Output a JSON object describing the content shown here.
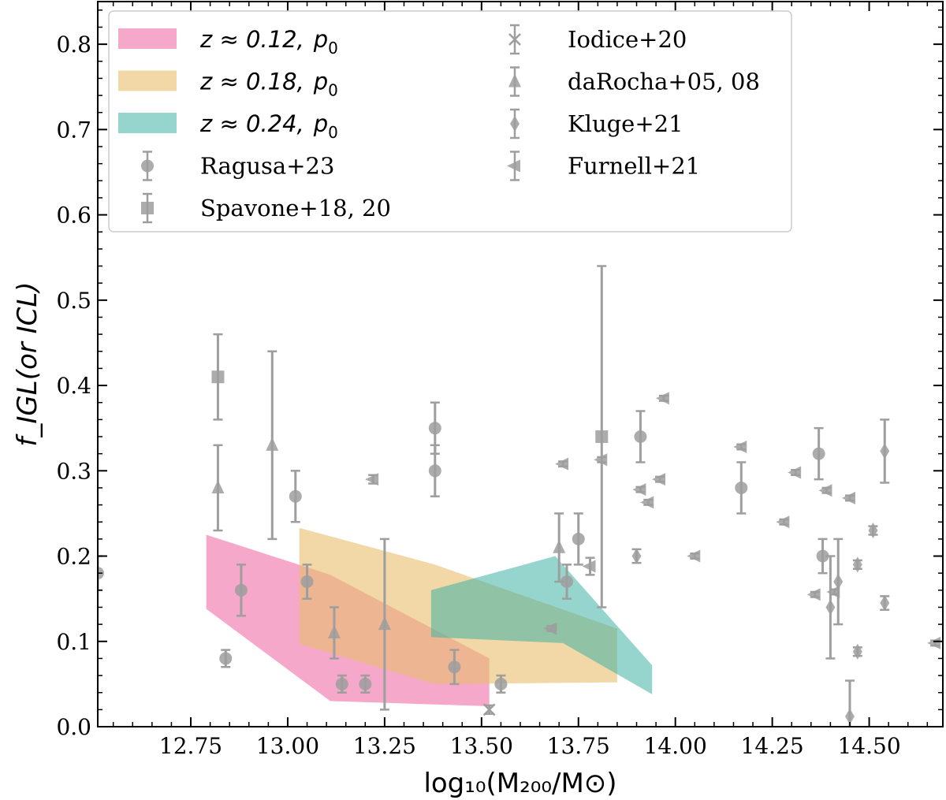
{
  "chart_data": {
    "type": "scatter",
    "xlabel": "log₁₀(M₂₀₀/M⊙)",
    "ylabel": "f_IGL(or ICL)",
    "xlim": [
      12.51,
      14.69
    ],
    "ylim": [
      0.0,
      0.85
    ],
    "x_ticks": [
      "12.75",
      "13.00",
      "13.25",
      "13.50",
      "13.75",
      "14.00",
      "14.25",
      "14.50"
    ],
    "y_ticks": [
      "0.0",
      "0.1",
      "0.2",
      "0.3",
      "0.4",
      "0.5",
      "0.6",
      "0.7",
      "0.8"
    ],
    "bands": [
      {
        "name": "z≈0.12, p0",
        "z": "z ≈ 0.12,",
        "p": "p",
        "p_sub": "0",
        "color": "#f06ea6",
        "opacity": 0.6,
        "upper": [
          [
            12.79,
            0.225
          ],
          [
            13.11,
            0.178
          ],
          [
            13.52,
            0.08
          ]
        ],
        "lower": [
          [
            12.79,
            0.138
          ],
          [
            13.11,
            0.03
          ],
          [
            13.52,
            0.024
          ]
        ]
      },
      {
        "name": "z≈0.18, p0",
        "z": "z ≈ 0.18,",
        "p": "p",
        "p_sub": "0",
        "color": "#e7be6a",
        "opacity": 0.6,
        "upper": [
          [
            13.03,
            0.233
          ],
          [
            13.38,
            0.19
          ],
          [
            13.85,
            0.115
          ]
        ],
        "lower": [
          [
            13.03,
            0.097
          ],
          [
            13.38,
            0.05
          ],
          [
            13.85,
            0.052
          ]
        ]
      },
      {
        "name": "z≈0.24, p0",
        "z": "z ≈ 0.24,",
        "p": "p",
        "p_sub": "0",
        "color": "#3fb3a5",
        "opacity": 0.55,
        "upper": [
          [
            13.37,
            0.16
          ],
          [
            13.69,
            0.2
          ],
          [
            13.94,
            0.072
          ]
        ],
        "lower": [
          [
            13.37,
            0.105
          ],
          [
            13.71,
            0.098
          ],
          [
            13.94,
            0.038
          ]
        ]
      }
    ],
    "series": [
      {
        "name": "Ragusa+23",
        "marker": "circle",
        "points": [
          {
            "x": 12.51,
            "y": 0.18,
            "err": 0.02
          },
          {
            "x": 12.84,
            "y": 0.08,
            "err": 0.01
          },
          {
            "x": 12.88,
            "y": 0.16,
            "err": 0.03
          },
          {
            "x": 13.02,
            "y": 0.27,
            "err": 0.03
          },
          {
            "x": 13.05,
            "y": 0.17,
            "err": 0.02
          },
          {
            "x": 13.14,
            "y": 0.05,
            "err": 0.01
          },
          {
            "x": 13.2,
            "y": 0.05,
            "err": 0.01
          },
          {
            "x": 13.38,
            "y": 0.35,
            "err": 0.03
          },
          {
            "x": 13.38,
            "y": 0.3,
            "err": 0.03
          },
          {
            "x": 13.43,
            "y": 0.07,
            "err": 0.02
          },
          {
            "x": 13.55,
            "y": 0.05,
            "err": 0.01
          },
          {
            "x": 13.72,
            "y": 0.17,
            "err": 0.02
          },
          {
            "x": 13.75,
            "y": 0.22,
            "err": 0.03
          },
          {
            "x": 13.91,
            "y": 0.34,
            "err": 0.03
          },
          {
            "x": 14.17,
            "y": 0.28,
            "err": 0.03
          },
          {
            "x": 14.37,
            "y": 0.32,
            "err": 0.03
          },
          {
            "x": 14.38,
            "y": 0.2,
            "err": 0.02
          }
        ]
      },
      {
        "name": "Spavone+18, 20",
        "marker": "square",
        "points": [
          {
            "x": 12.82,
            "y": 0.41,
            "err": 0.05
          },
          {
            "x": 13.81,
            "y": 0.34,
            "err": 0.2
          }
        ]
      },
      {
        "name": "Iodice+20",
        "marker": "x",
        "points": [
          {
            "x": 13.52,
            "y": 0.02,
            "err": 0.005
          }
        ]
      },
      {
        "name": "daRocha+05, 08",
        "marker": "triangle-up",
        "points": [
          {
            "x": 12.82,
            "y": 0.28,
            "err": 0.05
          },
          {
            "x": 12.96,
            "y": 0.33,
            "err": 0.11
          },
          {
            "x": 13.12,
            "y": 0.11,
            "err": 0.03
          },
          {
            "x": 13.25,
            "y": 0.12,
            "err": 0.1
          },
          {
            "x": 13.7,
            "y": 0.21,
            "err": 0.04
          }
        ]
      },
      {
        "name": "Kluge+21",
        "marker": "thin-diamond",
        "points": [
          {
            "x": 13.9,
            "y": 0.2,
            "err": 0.008
          },
          {
            "x": 14.4,
            "y": 0.14,
            "err": 0.06
          },
          {
            "x": 14.42,
            "y": 0.17,
            "err": 0.05
          },
          {
            "x": 14.45,
            "y": 0.012,
            "err": 0.042
          },
          {
            "x": 14.47,
            "y": 0.19,
            "err": 0.005
          },
          {
            "x": 14.47,
            "y": 0.088,
            "err": 0.005
          },
          {
            "x": 14.51,
            "y": 0.23,
            "err": 0.005
          },
          {
            "x": 14.54,
            "y": 0.323,
            "err": 0.037
          },
          {
            "x": 14.54,
            "y": 0.145,
            "err": 0.008
          }
        ]
      },
      {
        "name": "Furnell+21",
        "marker": "triangle-left",
        "points": [
          {
            "x": 13.22,
            "y": 0.29,
            "err": 0.005
          },
          {
            "x": 13.68,
            "y": 0.115,
            "err": 0.003
          },
          {
            "x": 13.71,
            "y": 0.308,
            "err": 0.003
          },
          {
            "x": 13.78,
            "y": 0.188,
            "err": 0.01
          },
          {
            "x": 13.81,
            "y": 0.313,
            "err": 0.003
          },
          {
            "x": 13.91,
            "y": 0.278,
            "err": 0.003
          },
          {
            "x": 13.93,
            "y": 0.263,
            "err": 0.003
          },
          {
            "x": 13.96,
            "y": 0.29,
            "err": 0.003
          },
          {
            "x": 13.97,
            "y": 0.385,
            "err": 0.003
          },
          {
            "x": 14.05,
            "y": 0.2,
            "err": 0.003
          },
          {
            "x": 14.17,
            "y": 0.328,
            "err": 0.003
          },
          {
            "x": 14.28,
            "y": 0.24,
            "err": 0.003
          },
          {
            "x": 14.31,
            "y": 0.298,
            "err": 0.003
          },
          {
            "x": 14.36,
            "y": 0.155,
            "err": 0.003
          },
          {
            "x": 14.39,
            "y": 0.277,
            "err": 0.003
          },
          {
            "x": 14.41,
            "y": 0.158,
            "err": 0.003
          },
          {
            "x": 14.45,
            "y": 0.268,
            "err": 0.003
          },
          {
            "x": 14.67,
            "y": 0.098,
            "err": 0.003
          }
        ]
      }
    ],
    "marker_color": "#9e9e9e",
    "legend_position": "top-left",
    "grid": false
  }
}
